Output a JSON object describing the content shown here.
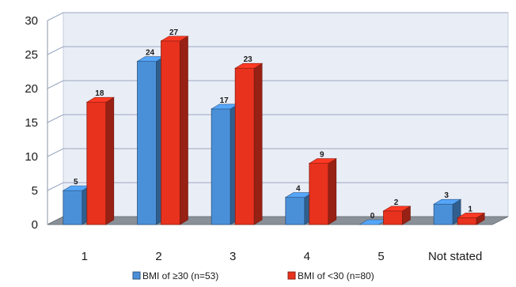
{
  "chart_data": {
    "type": "bar",
    "title": "",
    "xlabel": "",
    "ylabel": "",
    "categories": [
      "1",
      "2",
      "3",
      "4",
      "5",
      "Not stated"
    ],
    "ylim": [
      0,
      30
    ],
    "yticks": [
      0,
      5,
      10,
      15,
      20,
      25,
      30
    ],
    "grid": true,
    "legend_position": "bottom",
    "style": "3d-clustered",
    "series": [
      {
        "name": "BMI of ≥30 (n=53)",
        "color": "#4a90d9",
        "values": [
          5,
          24,
          17,
          4,
          0,
          3
        ]
      },
      {
        "name": "BMI of <30 (n=80)",
        "color": "#e8321e",
        "values": [
          18,
          27,
          23,
          9,
          2,
          1
        ]
      }
    ]
  }
}
